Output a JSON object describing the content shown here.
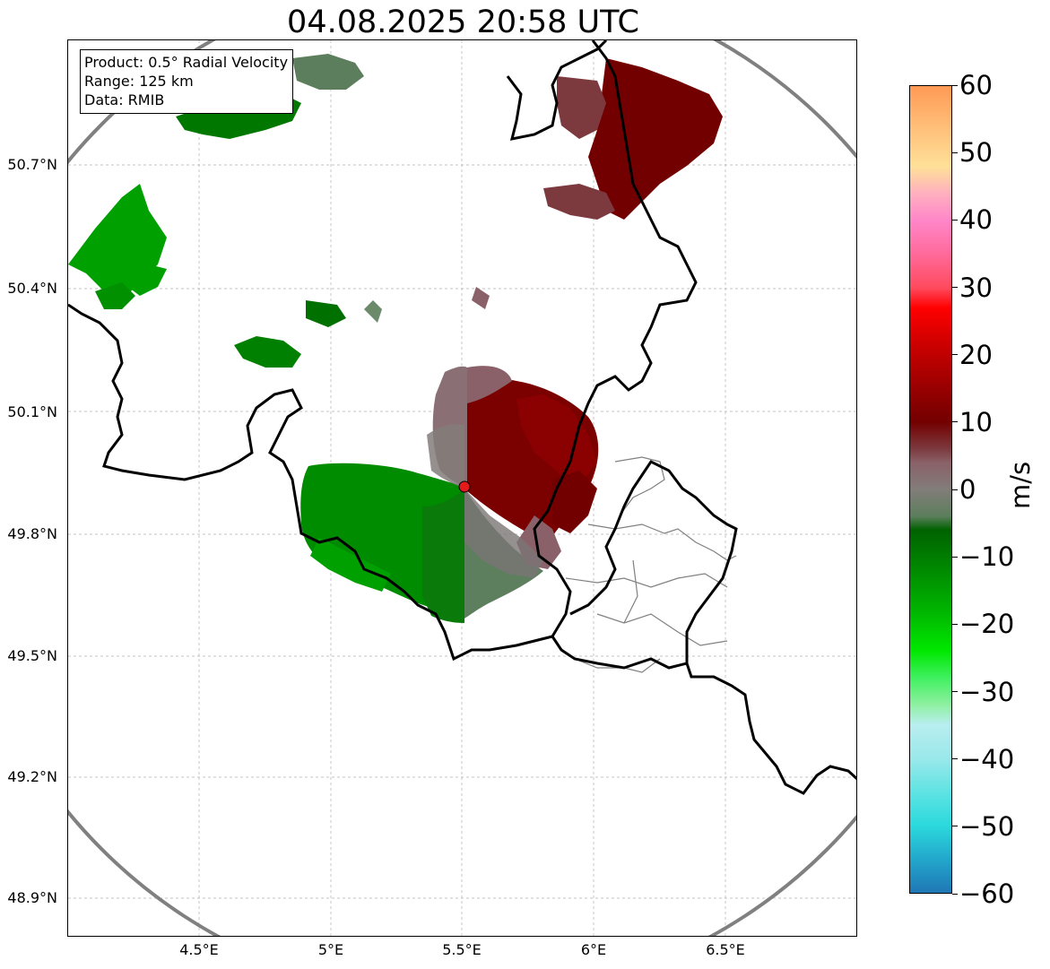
{
  "title": "04.08.2025 20:58 UTC",
  "info_box": {
    "product": "Product: 0.5° Radial Velocity",
    "range": "Range: 125 km",
    "data": "Data: RMIB"
  },
  "map": {
    "lon_range": [
      4.0,
      7.0
    ],
    "lat_range": [
      48.8,
      51.0
    ],
    "x_ticks": [
      "4.5°E",
      "5°E",
      "5.5°E",
      "6°E",
      "6.5°E"
    ],
    "y_ticks": [
      "50.7°N",
      "50.4°N",
      "50.1°N",
      "49.8°N",
      "49.5°N",
      "49.2°N",
      "48.9°N"
    ],
    "radar_site": {
      "lon": 5.51,
      "lat": 49.91
    },
    "range_ring_color": "#808080",
    "border_color": "#000000",
    "admin_border_color": "#808080",
    "grid": "on, dashed gray"
  },
  "colorbar": {
    "label": "m/s",
    "min": -60,
    "max": 60,
    "tick_labels": [
      "60",
      "50",
      "40",
      "30",
      "20",
      "10",
      "0",
      "−10",
      "−20",
      "−30",
      "−40",
      "−50",
      "−60"
    ],
    "stops": [
      {
        "v": -60,
        "c": "#1f77b4"
      },
      {
        "v": -55,
        "c": "#22a7cc"
      },
      {
        "v": -50,
        "c": "#2bd9dc"
      },
      {
        "v": -45,
        "c": "#5fe3e3"
      },
      {
        "v": -40,
        "c": "#9ae8ea"
      },
      {
        "v": -35,
        "c": "#b9eef0"
      },
      {
        "v": -32,
        "c": "#8ef0a0"
      },
      {
        "v": -28,
        "c": "#40f060"
      },
      {
        "v": -24,
        "c": "#00e800"
      },
      {
        "v": -18,
        "c": "#00b400"
      },
      {
        "v": -12,
        "c": "#008a00"
      },
      {
        "v": -6,
        "c": "#006200"
      },
      {
        "v": -4,
        "c": "#5c7e5c"
      },
      {
        "v": 0,
        "c": "#827d7a"
      },
      {
        "v": 4,
        "c": "#8a6168"
      },
      {
        "v": 6,
        "c": "#7c3a3f"
      },
      {
        "v": 10,
        "c": "#730000"
      },
      {
        "v": 16,
        "c": "#a00000"
      },
      {
        "v": 22,
        "c": "#d00000"
      },
      {
        "v": 27,
        "c": "#ff0000"
      },
      {
        "v": 30,
        "c": "#ff4a5e"
      },
      {
        "v": 35,
        "c": "#ff6a9a"
      },
      {
        "v": 40,
        "c": "#ff86c8"
      },
      {
        "v": 44,
        "c": "#ffb0c0"
      },
      {
        "v": 48,
        "c": "#ffe098"
      },
      {
        "v": 53,
        "c": "#ffc47e"
      },
      {
        "v": 60,
        "c": "#ff9a55"
      }
    ]
  }
}
